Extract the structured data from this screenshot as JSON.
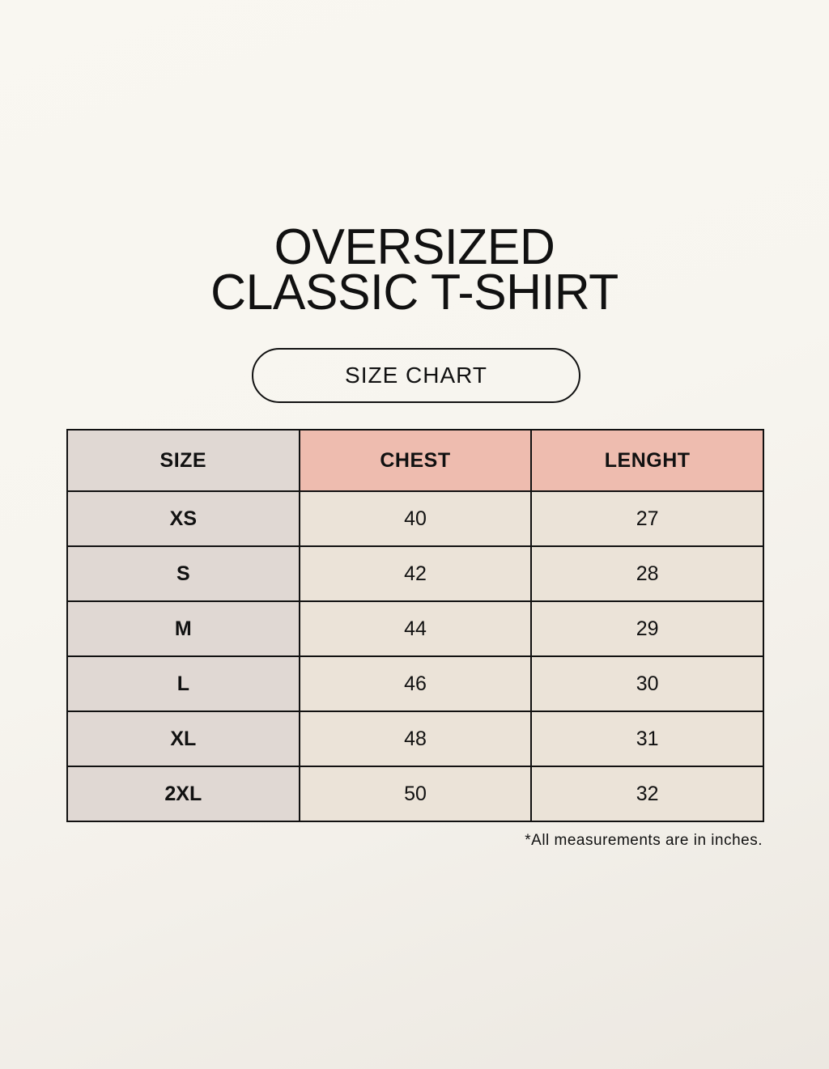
{
  "title": {
    "line1": "OVERSIZED",
    "line2": "CLASSIC T-SHIRT"
  },
  "subtitle_pill": "SIZE CHART",
  "colors": {
    "header_size": "#e0d8d3",
    "header_accent": "#eebcaf",
    "cell": "#ebe3d8",
    "background": "#f8f6f0"
  },
  "table": {
    "headers": [
      "SIZE",
      "CHEST",
      "LENGHT"
    ],
    "rows": [
      [
        "XS",
        "40",
        "27"
      ],
      [
        "S",
        "42",
        "28"
      ],
      [
        "M",
        "44",
        "29"
      ],
      [
        "L",
        "46",
        "30"
      ],
      [
        "XL",
        "48",
        "31"
      ],
      [
        "2XL",
        "50",
        "32"
      ]
    ]
  },
  "footnote": "*All measurements are in inches."
}
